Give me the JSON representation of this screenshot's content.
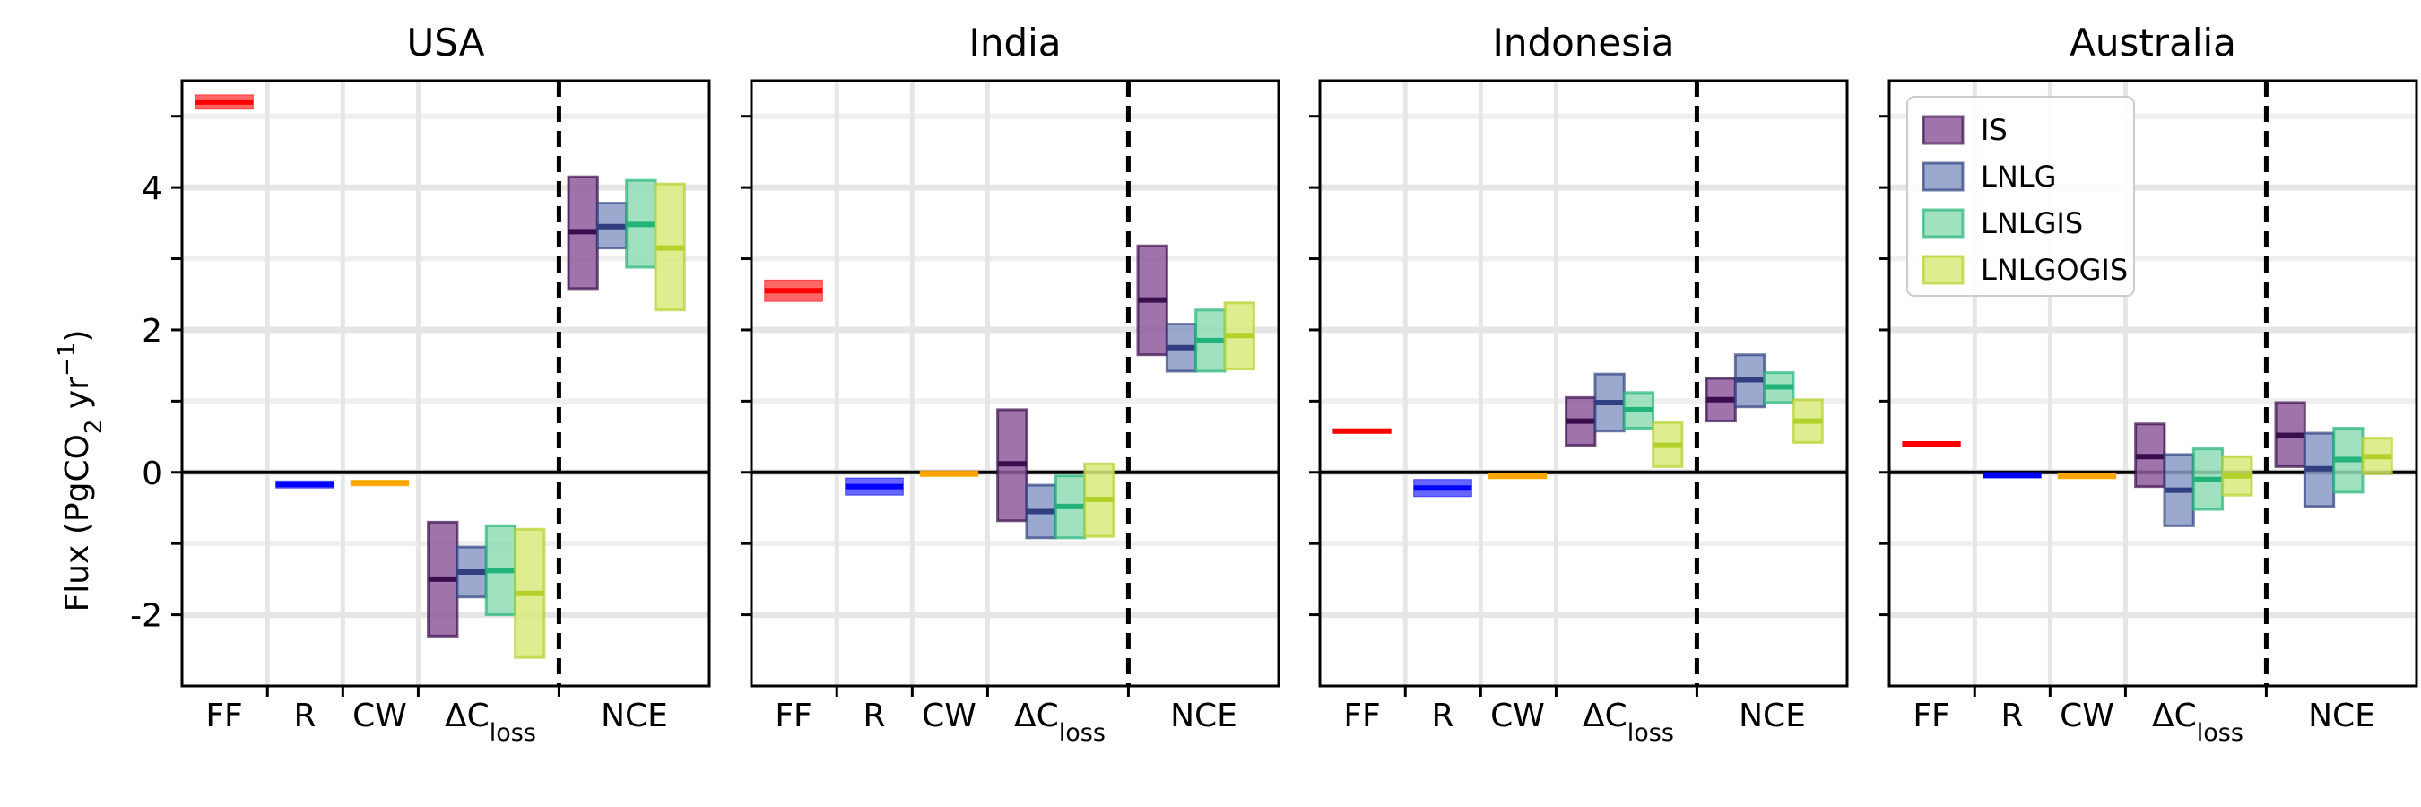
{
  "chart_data": {
    "type": "bar",
    "ylabel": "Flux (PgCO2 yr-1)",
    "ylabel_parts": {
      "pre": "Flux (PgCO",
      "sub": "2",
      "mid": " yr",
      "sup": "−1",
      "post": ")"
    },
    "ylim": [
      -3,
      5.5
    ],
    "yticks": [
      {
        "value": 4,
        "label": "4"
      },
      {
        "value": 2,
        "label": "2"
      },
      {
        "value": 0,
        "label": "0"
      },
      {
        "value": -2,
        "label": "-2"
      }
    ],
    "grid": true,
    "categories": [
      "FF",
      "R",
      "CW",
      "ΔCloss",
      "NCE"
    ],
    "category_labels": [
      {
        "text": "FF",
        "sub": ""
      },
      {
        "text": "R",
        "sub": ""
      },
      {
        "text": "CW",
        "sub": ""
      },
      {
        "text": "ΔC",
        "sub": "loss"
      },
      {
        "text": "NCE",
        "sub": ""
      }
    ],
    "legend": {
      "placement": "upper-left of last panel",
      "entries": [
        {
          "name": "IS",
          "color": "#6a3d7a"
        },
        {
          "name": "LNLG",
          "color": "#5a6ba4"
        },
        {
          "name": "LNLGIS",
          "color": "#3fbf8a"
        },
        {
          "name": "LNLGOGIS",
          "color": "#bcd93a"
        }
      ]
    },
    "colors": {
      "FF": "#ff0000",
      "R": "#0000ff",
      "CW": "#ffa500",
      "IS": {
        "fill": "#8e5c9b",
        "line": "#3a0d4c"
      },
      "LNLG": {
        "fill": "#8b9ac6",
        "line": "#2f3f80"
      },
      "LNLGIS": {
        "fill": "#8fdcb5",
        "line": "#22b37a"
      },
      "LNLGOGIS": {
        "fill": "#d8ea7c",
        "line": "#b3d12b"
      }
    },
    "panels": [
      {
        "title": "USA",
        "FF": {
          "mid": 5.2,
          "low": 5.1,
          "high": 5.3
        },
        "R": {
          "mid": -0.17,
          "low": -0.22,
          "high": -0.12
        },
        "CW": {
          "mid": -0.15,
          "low": -0.19,
          "high": -0.11
        },
        "dCloss": [
          {
            "series": "IS",
            "mid": -1.5,
            "low": -2.3,
            "high": -0.7
          },
          {
            "series": "LNLG",
            "mid": -1.4,
            "low": -1.75,
            "high": -1.05
          },
          {
            "series": "LNLGIS",
            "mid": -1.38,
            "low": -2.0,
            "high": -0.75
          },
          {
            "series": "LNLGOGIS",
            "mid": -1.7,
            "low": -2.6,
            "high": -0.8
          }
        ],
        "NCE": [
          {
            "series": "IS",
            "mid": 3.38,
            "low": 2.58,
            "high": 4.15
          },
          {
            "series": "LNLG",
            "mid": 3.45,
            "low": 3.15,
            "high": 3.78
          },
          {
            "series": "LNLGIS",
            "mid": 3.48,
            "low": 2.88,
            "high": 4.1
          },
          {
            "series": "LNLGOGIS",
            "mid": 3.15,
            "low": 2.28,
            "high": 4.05
          }
        ]
      },
      {
        "title": "India",
        "FF": {
          "mid": 2.55,
          "low": 2.4,
          "high": 2.7
        },
        "R": {
          "mid": -0.2,
          "low": -0.32,
          "high": -0.08
        },
        "CW": {
          "mid": -0.02,
          "low": -0.06,
          "high": 0.02
        },
        "dCloss": [
          {
            "series": "IS",
            "mid": 0.12,
            "low": -0.68,
            "high": 0.88
          },
          {
            "series": "LNLG",
            "mid": -0.55,
            "low": -0.92,
            "high": -0.18
          },
          {
            "series": "LNLGIS",
            "mid": -0.48,
            "low": -0.92,
            "high": -0.05
          },
          {
            "series": "LNLGOGIS",
            "mid": -0.38,
            "low": -0.9,
            "high": 0.12
          }
        ],
        "NCE": [
          {
            "series": "IS",
            "mid": 2.42,
            "low": 1.65,
            "high": 3.18
          },
          {
            "series": "LNLG",
            "mid": 1.75,
            "low": 1.42,
            "high": 2.08
          },
          {
            "series": "LNLGIS",
            "mid": 1.85,
            "low": 1.42,
            "high": 2.28
          },
          {
            "series": "LNLGOGIS",
            "mid": 1.92,
            "low": 1.45,
            "high": 2.38
          }
        ]
      },
      {
        "title": "Indonesia",
        "FF": {
          "mid": 0.58,
          "low": 0.55,
          "high": 0.61
        },
        "R": {
          "mid": -0.22,
          "low": -0.34,
          "high": -0.1
        },
        "CW": {
          "mid": -0.05,
          "low": -0.09,
          "high": -0.01
        },
        "dCloss": [
          {
            "series": "IS",
            "mid": 0.72,
            "low": 0.38,
            "high": 1.05
          },
          {
            "series": "LNLG",
            "mid": 0.98,
            "low": 0.58,
            "high": 1.38
          },
          {
            "series": "LNLGIS",
            "mid": 0.88,
            "low": 0.62,
            "high": 1.12
          },
          {
            "series": "LNLGOGIS",
            "mid": 0.38,
            "low": 0.08,
            "high": 0.7
          }
        ],
        "NCE": [
          {
            "series": "IS",
            "mid": 1.02,
            "low": 0.72,
            "high": 1.32
          },
          {
            "series": "LNLG",
            "mid": 1.3,
            "low": 0.92,
            "high": 1.65
          },
          {
            "series": "LNLGIS",
            "mid": 1.2,
            "low": 0.98,
            "high": 1.4
          },
          {
            "series": "LNLGOGIS",
            "mid": 0.72,
            "low": 0.42,
            "high": 1.02
          }
        ]
      },
      {
        "title": "Australia",
        "FF": {
          "mid": 0.4,
          "low": 0.37,
          "high": 0.43
        },
        "R": {
          "mid": -0.04,
          "low": -0.08,
          "high": 0.0
        },
        "CW": {
          "mid": -0.05,
          "low": -0.09,
          "high": -0.01
        },
        "dCloss": [
          {
            "series": "IS",
            "mid": 0.22,
            "low": -0.2,
            "high": 0.68
          },
          {
            "series": "LNLG",
            "mid": -0.25,
            "low": -0.75,
            "high": 0.25
          },
          {
            "series": "LNLGIS",
            "mid": -0.1,
            "low": -0.52,
            "high": 0.33
          },
          {
            "series": "LNLGOGIS",
            "mid": -0.05,
            "low": -0.32,
            "high": 0.22
          }
        ],
        "NCE": [
          {
            "series": "IS",
            "mid": 0.52,
            "low": 0.08,
            "high": 0.98
          },
          {
            "series": "LNLG",
            "mid": 0.05,
            "low": -0.48,
            "high": 0.55
          },
          {
            "series": "LNLGIS",
            "mid": 0.18,
            "low": -0.28,
            "high": 0.62
          },
          {
            "series": "LNLGOGIS",
            "mid": 0.22,
            "low": -0.02,
            "high": 0.48
          }
        ]
      }
    ]
  }
}
